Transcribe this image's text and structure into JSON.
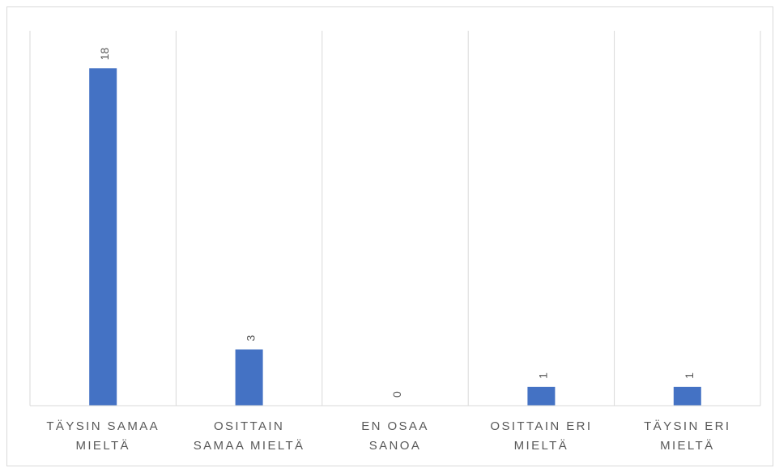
{
  "chart_data": {
    "type": "bar",
    "categories": [
      [
        "TÄYSIN SAMAA",
        "MIELTÄ"
      ],
      [
        "OSITTAIN",
        "SAMAA MIELTÄ"
      ],
      [
        "EN OSAA",
        "SANOA"
      ],
      [
        "OSITTAIN ERI",
        "MIELTÄ"
      ],
      [
        "TÄYSIN ERI",
        "MIELTÄ"
      ]
    ],
    "values": [
      18,
      3,
      0,
      1,
      1
    ],
    "ylim": [
      0,
      20
    ],
    "grid": "vertical-separators",
    "legend": "none",
    "colors": {
      "bar": "#4472c4",
      "gridline": "#d9d9d9",
      "axis": "#d9d9d9",
      "text": "#595959"
    }
  }
}
